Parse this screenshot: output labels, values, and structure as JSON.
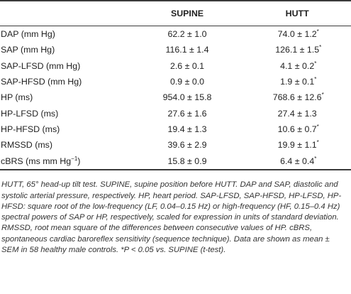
{
  "table": {
    "columns": [
      "",
      "SUPINE",
      "HUTT"
    ],
    "rows": [
      {
        "label": "DAP (mm Hg)",
        "supine": "62.2 ± 1.0",
        "hutt": "74.0 ± 1.2",
        "hutt_mark": "*"
      },
      {
        "label": "SAP (mm Hg)",
        "supine": "116.1 ± 1.4",
        "hutt": "126.1 ± 1.5",
        "hutt_mark": "*"
      },
      {
        "label": "SAP-LFSD (mm Hg)",
        "supine": "2.6 ± 0.1",
        "hutt": "4.1 ± 0.2",
        "hutt_mark": "*"
      },
      {
        "label": "SAP-HFSD (mm Hg)",
        "supine": "0.9 ± 0.0",
        "hutt": "1.9 ± 0.1",
        "hutt_mark": "*"
      },
      {
        "label": "HP (ms)",
        "supine": "954.0 ± 15.8",
        "hutt": "768.6 ± 12.6",
        "hutt_mark": "*"
      },
      {
        "label": "HP-LFSD (ms)",
        "supine": "27.6 ± 1.6",
        "hutt": "27.4 ± 1.3",
        "hutt_mark": ""
      },
      {
        "label": "HP-HFSD (ms)",
        "supine": "19.4 ± 1.3",
        "hutt": "10.6 ± 0.7",
        "hutt_mark": "*"
      },
      {
        "label": "RMSSD (ms)",
        "supine": "39.6 ± 2.9",
        "hutt": "19.9 ± 1.1",
        "hutt_mark": "*"
      },
      {
        "label": "cBRS (ms mm Hg",
        "label_sup": "−1",
        "label_end": ")",
        "supine": "15.8 ± 0.9",
        "hutt": "6.4 ± 0.4",
        "hutt_mark": "*"
      }
    ]
  },
  "footnote": "HUTT, 65° head-up tilt test. SUPINE, supine position before HUTT. DAP and SAP, diastolic and systolic arterial pressure, respectively. HP, heart period. SAP-LFSD, SAP-HFSD, HP-LFSD, HP-HFSD: square root of the low-frequency (LF, 0.04–0.15 Hz) or high-frequency (HF, 0.15–0.4 Hz) spectral powers of SAP or HP, respectively, scaled for expression in units of standard deviation. RMSSD, root mean square of the differences between consecutive values of HP. cBRS, spontaneous cardiac baroreflex sensitivity (sequence technique). Data are shown as mean ± SEM in 58 healthy male controls. *P < 0.05 vs. SUPINE (t-test)."
}
